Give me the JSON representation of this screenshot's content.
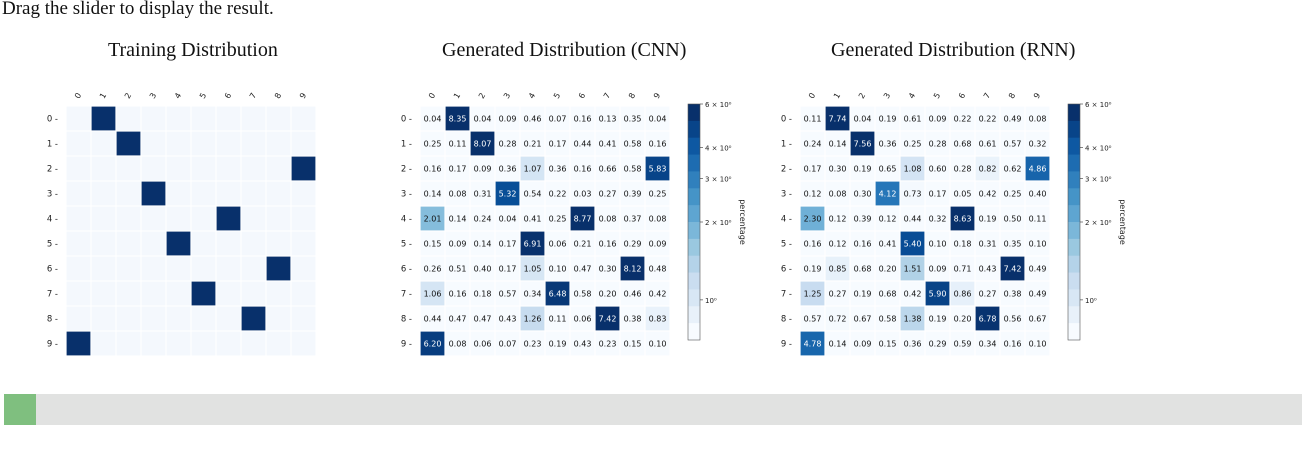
{
  "instruction": "Drag the slider to display the result.",
  "slider": {
    "value": 0
  },
  "colors": {
    "low": "#f7fbff",
    "high": "#08306b",
    "handle": "#7fbf7f",
    "track": "#e1e2e1"
  },
  "labels": [
    "0",
    "1",
    "2",
    "3",
    "4",
    "5",
    "6",
    "7",
    "8",
    "9"
  ],
  "chart_data": [
    {
      "type": "heatmap",
      "title": "Training Distribution",
      "rows": [
        "0",
        "1",
        "2",
        "3",
        "4",
        "5",
        "6",
        "7",
        "8",
        "9"
      ],
      "cols": [
        "0",
        "1",
        "2",
        "3",
        "4",
        "5",
        "6",
        "7",
        "8",
        "9"
      ],
      "show_values": false,
      "colorbar": false,
      "values": [
        [
          0,
          1,
          0,
          0,
          0,
          0,
          0,
          0,
          0,
          0
        ],
        [
          0,
          0,
          1,
          0,
          0,
          0,
          0,
          0,
          0,
          0
        ],
        [
          0,
          0,
          0,
          0,
          0,
          0,
          0,
          0,
          0,
          1
        ],
        [
          0,
          0,
          0,
          1,
          0,
          0,
          0,
          0,
          0,
          0
        ],
        [
          0,
          0,
          0,
          0,
          0,
          0,
          1,
          0,
          0,
          0
        ],
        [
          0,
          0,
          0,
          0,
          1,
          0,
          0,
          0,
          0,
          0
        ],
        [
          0,
          0,
          0,
          0,
          0,
          0,
          0,
          0,
          1,
          0
        ],
        [
          0,
          0,
          0,
          0,
          0,
          1,
          0,
          0,
          0,
          0
        ],
        [
          0,
          0,
          0,
          0,
          0,
          0,
          0,
          1,
          0,
          0
        ],
        [
          1,
          0,
          0,
          0,
          0,
          0,
          0,
          0,
          0,
          0
        ]
      ]
    },
    {
      "type": "heatmap",
      "title": "Generated Distribution (CNN)",
      "rows": [
        "0",
        "1",
        "2",
        "3",
        "4",
        "5",
        "6",
        "7",
        "8",
        "9"
      ],
      "cols": [
        "0",
        "1",
        "2",
        "3",
        "4",
        "5",
        "6",
        "7",
        "8",
        "9"
      ],
      "show_values": true,
      "colorbar": true,
      "colorbar_label": "percentage",
      "colorbar_ticks": [
        "6 × 10⁰",
        "4 × 10⁰",
        "3 × 10⁰",
        "2 × 10⁰",
        "10⁰"
      ],
      "values": [
        [
          "0.04",
          "8.35",
          "0.04",
          "0.09",
          "0.46",
          "0.07",
          "0.16",
          "0.13",
          "0.35",
          "0.04"
        ],
        [
          "0.25",
          "0.11",
          "8.07",
          "0.28",
          "0.21",
          "0.17",
          "0.44",
          "0.41",
          "0.58",
          "0.16"
        ],
        [
          "0.16",
          "0.17",
          "0.09",
          "0.36",
          "1.07",
          "0.36",
          "0.16",
          "0.66",
          "0.58",
          "5.83"
        ],
        [
          "0.14",
          "0.08",
          "0.31",
          "5.32",
          "0.54",
          "0.22",
          "0.03",
          "0.27",
          "0.39",
          "0.25"
        ],
        [
          "2.01",
          "0.14",
          "0.24",
          "0.04",
          "0.41",
          "0.25",
          "8.77",
          "0.08",
          "0.37",
          "0.08"
        ],
        [
          "0.15",
          "0.09",
          "0.14",
          "0.17",
          "6.91",
          "0.06",
          "0.21",
          "0.16",
          "0.29",
          "0.09"
        ],
        [
          "0.26",
          "0.51",
          "0.40",
          "0.17",
          "1.05",
          "0.10",
          "0.47",
          "0.30",
          "8.12",
          "0.48"
        ],
        [
          "1.06",
          "0.16",
          "0.18",
          "0.57",
          "0.34",
          "6.48",
          "0.58",
          "0.20",
          "0.46",
          "0.42"
        ],
        [
          "0.44",
          "0.47",
          "0.47",
          "0.43",
          "1.26",
          "0.11",
          "0.06",
          "7.42",
          "0.38",
          "0.83"
        ],
        [
          "6.20",
          "0.08",
          "0.06",
          "0.07",
          "0.23",
          "0.19",
          "0.43",
          "0.23",
          "0.15",
          "0.10"
        ]
      ]
    },
    {
      "type": "heatmap",
      "title": "Generated Distribution (RNN)",
      "rows": [
        "0",
        "1",
        "2",
        "3",
        "4",
        "5",
        "6",
        "7",
        "8",
        "9"
      ],
      "cols": [
        "0",
        "1",
        "2",
        "3",
        "4",
        "5",
        "6",
        "7",
        "8",
        "9"
      ],
      "show_values": true,
      "colorbar": true,
      "colorbar_label": "percentage",
      "colorbar_ticks": [
        "6 × 10⁰",
        "4 × 10⁰",
        "3 × 10⁰",
        "2 × 10⁰",
        "10⁰"
      ],
      "values": [
        [
          "0.11",
          "7.74",
          "0.04",
          "0.19",
          "0.61",
          "0.09",
          "0.22",
          "0.22",
          "0.49",
          "0.08"
        ],
        [
          "0.24",
          "0.14",
          "7.56",
          "0.36",
          "0.25",
          "0.28",
          "0.68",
          "0.61",
          "0.57",
          "0.32"
        ],
        [
          "0.17",
          "0.30",
          "0.19",
          "0.65",
          "1.08",
          "0.60",
          "0.28",
          "0.82",
          "0.62",
          "4.86"
        ],
        [
          "0.12",
          "0.08",
          "0.30",
          "4.12",
          "0.73",
          "0.17",
          "0.05",
          "0.42",
          "0.25",
          "0.40"
        ],
        [
          "2.30",
          "0.12",
          "0.39",
          "0.12",
          "0.44",
          "0.32",
          "8.63",
          "0.19",
          "0.50",
          "0.11"
        ],
        [
          "0.16",
          "0.12",
          "0.16",
          "0.41",
          "5.40",
          "0.10",
          "0.18",
          "0.31",
          "0.35",
          "0.10"
        ],
        [
          "0.19",
          "0.85",
          "0.68",
          "0.20",
          "1.51",
          "0.09",
          "0.71",
          "0.43",
          "7.42",
          "0.49"
        ],
        [
          "1.25",
          "0.27",
          "0.19",
          "0.68",
          "0.42",
          "5.90",
          "0.86",
          "0.27",
          "0.38",
          "0.49"
        ],
        [
          "0.57",
          "0.72",
          "0.67",
          "0.58",
          "1.38",
          "0.19",
          "0.20",
          "6.78",
          "0.56",
          "0.67"
        ],
        [
          "4.78",
          "0.14",
          "0.09",
          "0.15",
          "0.36",
          "0.29",
          "0.59",
          "0.34",
          "0.16",
          "0.10"
        ]
      ]
    }
  ]
}
